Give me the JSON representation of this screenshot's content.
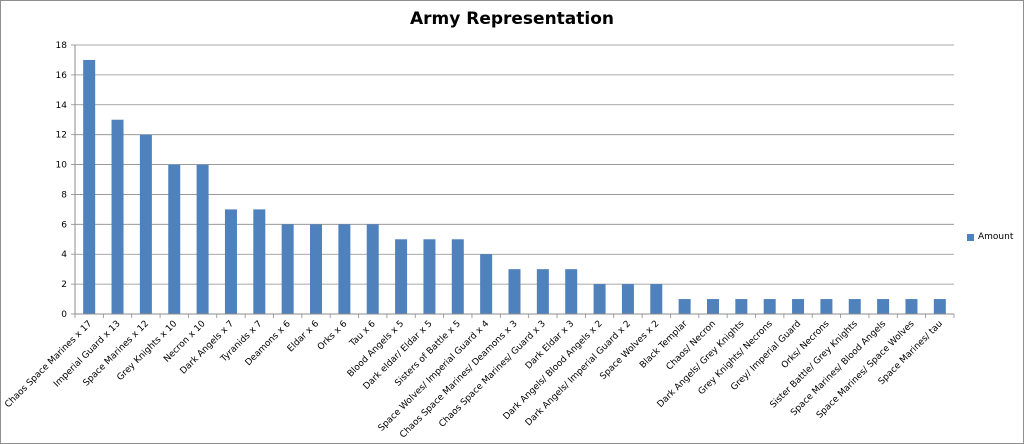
{
  "chart_data": {
    "type": "bar",
    "title": "Army Representation",
    "xlabel": "",
    "ylabel": "",
    "ylim": [
      0,
      18
    ],
    "yticks": [
      0,
      2,
      4,
      6,
      8,
      10,
      12,
      14,
      16,
      18
    ],
    "grid": true,
    "legend_position": "right",
    "bar_color": "#4F81BD",
    "categories": [
      "Chaos Space Marines x 17",
      "Imperial Guard x 13",
      "Space Marines x 12",
      "Grey Knights x 10",
      "Necron x 10",
      "Dark Angels x 7",
      "Tyranids x 7",
      "Deamons x 6",
      "Eldar x 6",
      "Orks x 6",
      "Tau x 6",
      "Blood Angels x 5",
      "Dark eldar/ Eldar x 5",
      "Sisters of Battle x 5",
      "Space Wolves/ Imperial Guard x 4",
      "Chaos Space Marines/ Deamons x 3",
      "Chaos Space Marines/ Guard x 3",
      "Dark Eldar x 3",
      "Dark Angels/ Blood Angels x 2",
      "Dark Angels/ Imperial Guard x 2",
      "Space Wolves x 2",
      "Black Templar",
      "Chaos/ Necron",
      "Dark Angels/ Grey Knights",
      "Grey Knights/ Necrons",
      "Grey/ Imperial Guard",
      "Orks/ Necrons",
      "Sister Battle/ Grey Knights",
      "Space Marines/ Blood Angels",
      "Space Marines/ Space Wolves",
      "Space Marines/ tau"
    ],
    "series": [
      {
        "name": "Amount",
        "values": [
          17,
          13,
          12,
          10,
          10,
          7,
          7,
          6,
          6,
          6,
          6,
          5,
          5,
          5,
          4,
          3,
          3,
          3,
          2,
          2,
          2,
          1,
          1,
          1,
          1,
          1,
          1,
          1,
          1,
          1,
          1
        ]
      }
    ]
  }
}
